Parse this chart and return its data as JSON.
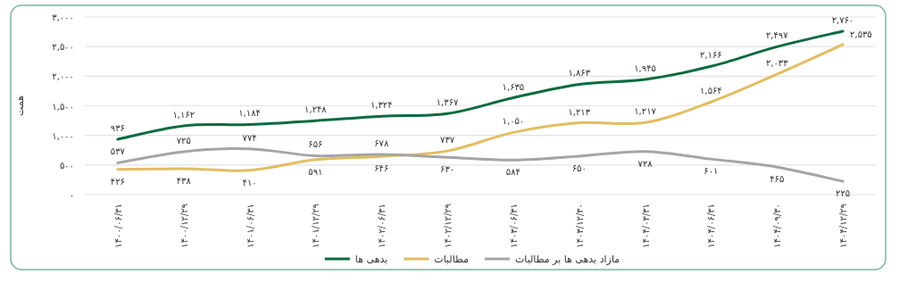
{
  "chart_data": {
    "type": "line",
    "ylabel": "همت",
    "categories": [
      "۱۴۰۰/۰۶/۳۱",
      "۱۴۰۰/۱۲/۲۹",
      "۱۴۰۱/۰۶/۳۱",
      "۱۴۰۱/۱۲/۲۹",
      "۱۴۰۲/۰۶/۳۱",
      "۱۴۰۲/۱۲/۲۹",
      "۱۴۰۳/۰۶/۳۱",
      "۱۴۰۳/۱۲/۳۰",
      "۱۴۰۴/۰۳/۳۱",
      "۱۴۰۴/۰۶/۳۱",
      "۱۴۰۴/۰۹/۳۰",
      "۱۴۰۴/۱۲/۲۹"
    ],
    "ylim": [
      0,
      3000
    ],
    "yticks": [
      {
        "value": 0,
        "label": "۰"
      },
      {
        "value": 500,
        "label": "۵۰۰"
      },
      {
        "value": 1000,
        "label": "۱,۰۰۰"
      },
      {
        "value": 1500,
        "label": "۱,۵۰۰"
      },
      {
        "value": 2000,
        "label": "۲,۰۰۰"
      },
      {
        "value": 2500,
        "label": "۲,۵۰۰"
      },
      {
        "value": 3000,
        "label": "۳,۰۰۰"
      }
    ],
    "grid": "y",
    "legend": "bottom",
    "marker": "none",
    "line_style": "solid",
    "series": [
      {
        "name": "بدهی ها",
        "color": "#0b6b3f",
        "values": [
          936,
          1162,
          1184,
          1248,
          1324,
          1367,
          1635,
          1863,
          1945,
          2166,
          2497,
          2760
        ],
        "value_labels": [
          "۹۳۶",
          "۱,۱۶۲",
          "۱,۱۸۴",
          "۱,۲۴۸",
          "۱,۳۲۴",
          "۱,۳۶۷",
          "۱,۶۳۵",
          "۱,۸۶۳",
          "۱,۹۴۵",
          "۲,۱۶۶",
          "۲,۴۹۷",
          "۲,۷۶۰"
        ]
      },
      {
        "name": "مطالبات",
        "color": "#e2bd62",
        "values": [
          426,
          438,
          410,
          591,
          646,
          737,
          1050,
          1213,
          1217,
          1564,
          2033,
          2535
        ],
        "value_labels": [
          "۴۲۶",
          "۴۳۸",
          "۴۱۰",
          "۵۹۱",
          "۶۴۶",
          "۷۳۷",
          "۱,۰۵۰",
          "۱,۲۱۳",
          "۱,۲۱۷",
          "۱,۵۶۴",
          "۲,۰۳۳",
          "۲,۵۳۵"
        ]
      },
      {
        "name": "مازاد بدهی ها بر مطالبات",
        "color": "#a5a5a5",
        "values": [
          537,
          725,
          774,
          656,
          678,
          630,
          584,
          650,
          728,
          601,
          465,
          225
        ],
        "value_labels": [
          "۵۳۷",
          "۷۲۵",
          "۷۷۴",
          "۶۵۶",
          "۶۷۸",
          "۶۳۰",
          "۵۸۴",
          "۶۵۰",
          "۷۲۸",
          "۶۰۱",
          "۴۶۵",
          "۲۲۵"
        ]
      }
    ]
  }
}
